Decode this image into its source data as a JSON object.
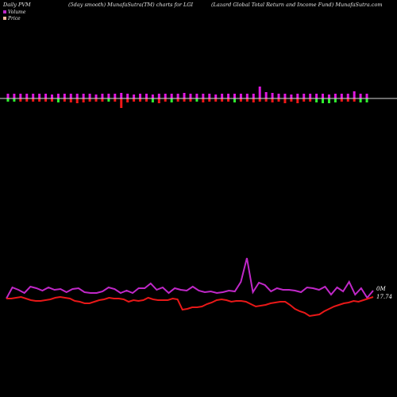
{
  "header": {
    "left": "Daily PVM",
    "middle": "(5day smooth) MunafaSutra(TM) charts for LGI",
    "right": "(Lazard Global Total Return  and Income   Fund) MunafaSutra.com"
  },
  "legend": [
    {
      "label": "Volume",
      "color": "#c028c8"
    },
    {
      "label": "Price",
      "color": "#f0b89a"
    }
  ],
  "colors": {
    "background": "#000000",
    "baseline": "#d8d8d8",
    "bar_up": "#e018e0",
    "bar_down_red": "#f01818",
    "bar_down_green": "#30f030",
    "volume_line": "#c028c8",
    "price_line": "#e81818"
  },
  "right_labels": {
    "volume": "0M",
    "price": "17.74"
  },
  "chart_data": {
    "type": "mixed",
    "panels": [
      {
        "name": "pvm-bars",
        "type": "bar",
        "values": [
          2,
          -2,
          2,
          -2,
          2,
          -2,
          2,
          -2,
          2,
          -2,
          2,
          -3,
          2,
          -3,
          2,
          -2,
          2,
          -2,
          2,
          -2,
          2,
          -2,
          2,
          -2,
          2,
          -2,
          3,
          -2,
          2,
          -2,
          2,
          -3,
          2,
          -2,
          2,
          -2,
          2,
          -2,
          2,
          -2,
          2,
          -2,
          3,
          -2,
          2,
          -2,
          2,
          -2,
          2,
          -2,
          2,
          -3,
          4,
          -3,
          2,
          -2,
          2,
          -2,
          2,
          -3,
          2,
          -3,
          2,
          -3,
          2,
          -3,
          2,
          -3,
          2,
          -2,
          2,
          -2,
          2,
          -3,
          2,
          -2,
          2,
          -2,
          3,
          -2,
          2,
          -3,
          2,
          -3,
          2,
          -2,
          2,
          -2,
          2,
          -2,
          2,
          -3,
          2,
          -2,
          2,
          -2,
          2,
          -3,
          2,
          -3,
          2,
          -2,
          2,
          -3,
          2,
          -2,
          2,
          -3,
          2,
          -2,
          2,
          -2,
          2,
          -2,
          2,
          -2,
          2,
          -2,
          2,
          -2,
          2,
          -2,
          2,
          -2,
          2,
          -2,
          2,
          -2,
          2,
          -2,
          2,
          -2,
          2,
          -2,
          2,
          -2
        ],
        "bars": [
          {
            "up": 6,
            "down": 4,
            "downColor": "green"
          },
          {
            "up": 6,
            "down": 4,
            "downColor": "green"
          },
          {
            "up": 6,
            "down": 4,
            "downColor": "red"
          },
          {
            "up": 6,
            "down": 4,
            "downColor": "red"
          },
          {
            "up": 6,
            "down": 4,
            "downColor": "red"
          },
          {
            "up": 6,
            "down": 4,
            "downColor": "red"
          },
          {
            "up": 6,
            "down": 4,
            "downColor": "red"
          },
          {
            "up": 5,
            "down": 4,
            "downColor": "red"
          },
          {
            "up": 6,
            "down": 5,
            "downColor": "green"
          },
          {
            "up": 6,
            "down": 4,
            "downColor": "red"
          },
          {
            "up": 6,
            "down": 5,
            "downColor": "red"
          },
          {
            "up": 6,
            "down": 6,
            "downColor": "red"
          },
          {
            "up": 6,
            "down": 5,
            "downColor": "red"
          },
          {
            "up": 6,
            "down": 4,
            "downColor": "red"
          },
          {
            "up": 5,
            "down": 4,
            "downColor": "red"
          },
          {
            "up": 6,
            "down": 4,
            "downColor": "red"
          },
          {
            "up": 6,
            "down": 4,
            "downColor": "green"
          },
          {
            "up": 6,
            "down": 4,
            "downColor": "red"
          },
          {
            "up": 7,
            "down": 12,
            "downColor": "red"
          },
          {
            "up": 6,
            "down": 5,
            "downColor": "red"
          },
          {
            "up": 5,
            "down": 4,
            "downColor": "red"
          },
          {
            "up": 6,
            "down": 4,
            "downColor": "red"
          },
          {
            "up": 6,
            "down": 4,
            "downColor": "red"
          },
          {
            "up": 5,
            "down": 5,
            "downColor": "green"
          },
          {
            "up": 6,
            "down": 6,
            "downColor": "red"
          },
          {
            "up": 6,
            "down": 4,
            "downColor": "red"
          },
          {
            "up": 6,
            "down": 5,
            "downColor": "green"
          },
          {
            "up": 6,
            "down": 4,
            "downColor": "red"
          },
          {
            "up": 7,
            "down": 4,
            "downColor": "red"
          },
          {
            "up": 6,
            "down": 4,
            "downColor": "red"
          },
          {
            "up": 6,
            "down": 4,
            "downColor": "green"
          },
          {
            "up": 6,
            "down": 5,
            "downColor": "red"
          },
          {
            "up": 6,
            "down": 4,
            "downColor": "red"
          },
          {
            "up": 5,
            "down": 4,
            "downColor": "red"
          },
          {
            "up": 6,
            "down": 4,
            "downColor": "red"
          },
          {
            "up": 6,
            "down": 4,
            "downColor": "red"
          },
          {
            "up": 6,
            "down": 5,
            "downColor": "green"
          },
          {
            "up": 6,
            "down": 4,
            "downColor": "red"
          },
          {
            "up": 6,
            "down": 4,
            "downColor": "red"
          },
          {
            "up": 6,
            "down": 5,
            "downColor": "red"
          },
          {
            "up": 15,
            "down": 4,
            "downColor": "red"
          },
          {
            "up": 8,
            "down": 4,
            "downColor": "red"
          },
          {
            "up": 7,
            "down": 5,
            "downColor": "red"
          },
          {
            "up": 6,
            "down": 4,
            "downColor": "red"
          },
          {
            "up": 6,
            "down": 6,
            "downColor": "red"
          },
          {
            "up": 5,
            "down": 4,
            "downColor": "red"
          },
          {
            "up": 6,
            "down": 6,
            "downColor": "red"
          },
          {
            "up": 6,
            "down": 4,
            "downColor": "red"
          },
          {
            "up": 6,
            "down": 4,
            "downColor": "red"
          },
          {
            "up": 6,
            "down": 5,
            "downColor": "green"
          },
          {
            "up": 6,
            "down": 6,
            "downColor": "green"
          },
          {
            "up": 5,
            "down": 6,
            "downColor": "green"
          },
          {
            "up": 6,
            "down": 5,
            "downColor": "green"
          },
          {
            "up": 6,
            "down": 4,
            "downColor": "red"
          },
          {
            "up": 6,
            "down": 4,
            "downColor": "red"
          },
          {
            "up": 9,
            "down": 4,
            "downColor": "red"
          },
          {
            "up": 6,
            "down": 5,
            "downColor": "green"
          },
          {
            "up": 6,
            "down": 5,
            "downColor": "green"
          }
        ]
      },
      {
        "name": "volume-line",
        "type": "line",
        "values": [
          376,
          362,
          365,
          369,
          361,
          363,
          366,
          362,
          365,
          364,
          368,
          364,
          363,
          368,
          369,
          369,
          367,
          362,
          364,
          369,
          366,
          369,
          363,
          363,
          357,
          365,
          362,
          369,
          363,
          365,
          366,
          361,
          366,
          368,
          367,
          369,
          368,
          366,
          367,
          355,
          325,
          368,
          356,
          359,
          367,
          363,
          365,
          365,
          366,
          368,
          362,
          363,
          365,
          361,
          371,
          362,
          367,
          355,
          371,
          363,
          375,
          366
        ]
      },
      {
        "name": "price-line",
        "type": "line",
        "values": [
          376,
          376,
          375,
          374,
          376,
          378,
          379,
          379,
          378,
          377,
          375,
          374,
          375,
          376,
          379,
          380,
          382,
          382,
          380,
          378,
          377,
          375,
          376,
          376,
          377,
          380,
          378,
          379,
          378,
          375,
          377,
          378,
          378,
          378,
          376,
          377,
          390,
          389,
          387,
          387,
          386,
          383,
          381,
          378,
          377,
          378,
          380,
          379,
          379,
          380,
          383,
          386,
          385,
          384,
          382,
          381,
          380,
          380,
          384,
          389,
          392,
          394,
          398,
          397,
          396,
          392,
          389,
          386,
          384,
          382,
          381,
          379,
          380,
          378,
          376,
          374
        ]
      }
    ]
  }
}
